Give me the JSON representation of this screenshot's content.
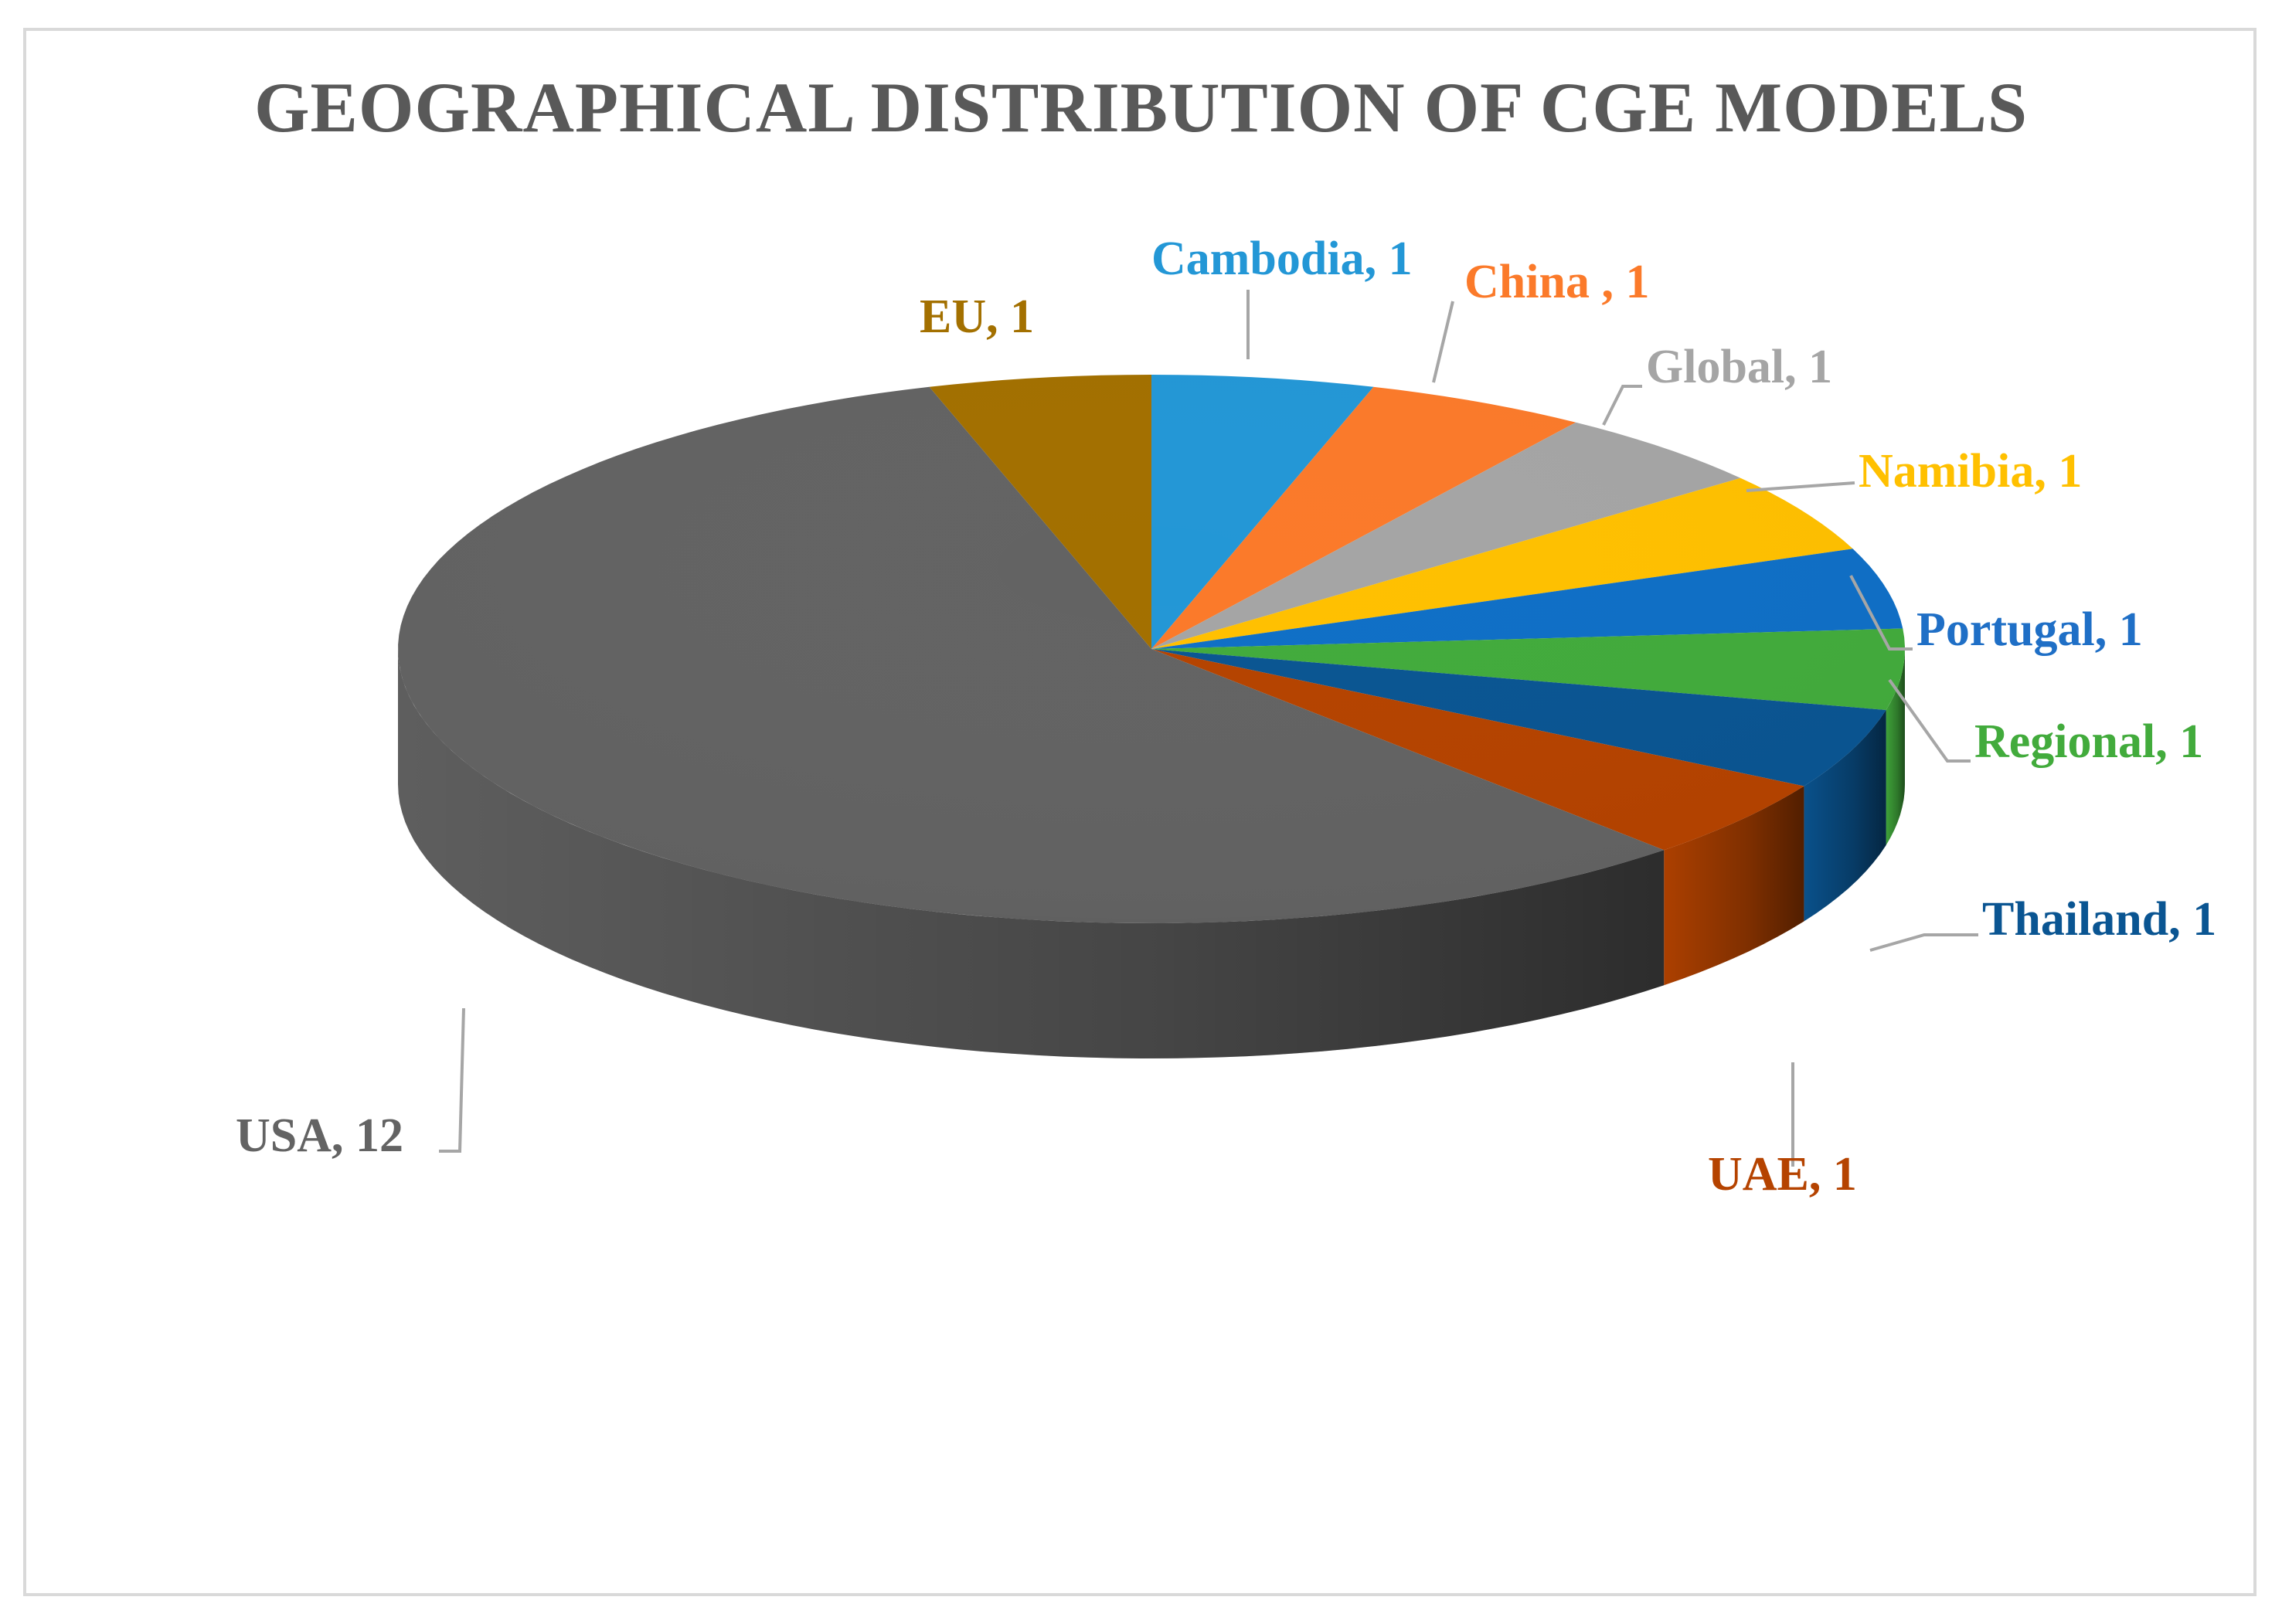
{
  "chart_data": {
    "type": "pie",
    "title": "GEOGRAPHICAL DISTRIBUTION OF CGE MODELS",
    "slices": [
      {
        "label": "Cambodia",
        "value": 1,
        "text": "Cambodia, 1",
        "color": "#2397d6",
        "label_color": "#2397d6"
      },
      {
        "label": "China",
        "value": 1,
        "text": "China , 1",
        "color": "#fb7a2a",
        "label_color": "#fb7a2a"
      },
      {
        "label": "Global",
        "value": 1,
        "text": "Global, 1",
        "color": "#a5a5a5",
        "label_color": "#a5a5a5"
      },
      {
        "label": "Namibia",
        "value": 1,
        "text": "Namibia, 1",
        "color": "#ffc000",
        "label_color": "#ffc000"
      },
      {
        "label": "Portugal",
        "value": 1,
        "text": "Portugal, 1",
        "color": "#0f6fc6",
        "label_color": "#1f6fc6"
      },
      {
        "label": "Regional",
        "value": 1,
        "text": "Regional, 1",
        "color": "#42ab3c",
        "label_color": "#42ab3c"
      },
      {
        "label": "Thailand",
        "value": 1,
        "text": "Thailand, 1",
        "color": "#0a5592",
        "label_color": "#0a5592"
      },
      {
        "label": "UAE",
        "value": 1,
        "text": "UAE, 1",
        "color": "#b54300",
        "label_color": "#b54300"
      },
      {
        "label": "USA",
        "value": 12,
        "text": "USA, 12",
        "color": "#636363",
        "label_color": "#636363"
      },
      {
        "label": "EU",
        "value": 1,
        "text": "EU, 1",
        "color": "#a37000",
        "label_color": "#a37000"
      }
    ],
    "legend": "none",
    "style": "3d-pie"
  }
}
